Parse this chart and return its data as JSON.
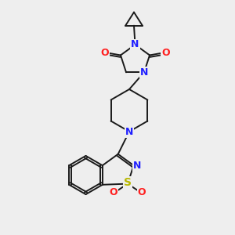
{
  "bg_color": "#eeeeee",
  "bond_color": "#1a1a1a",
  "atom_colors": {
    "N": "#2020ff",
    "O": "#ff2020",
    "S": "#b8b800",
    "C": "#1a1a1a"
  },
  "lw": 1.4,
  "fs": 8.5
}
